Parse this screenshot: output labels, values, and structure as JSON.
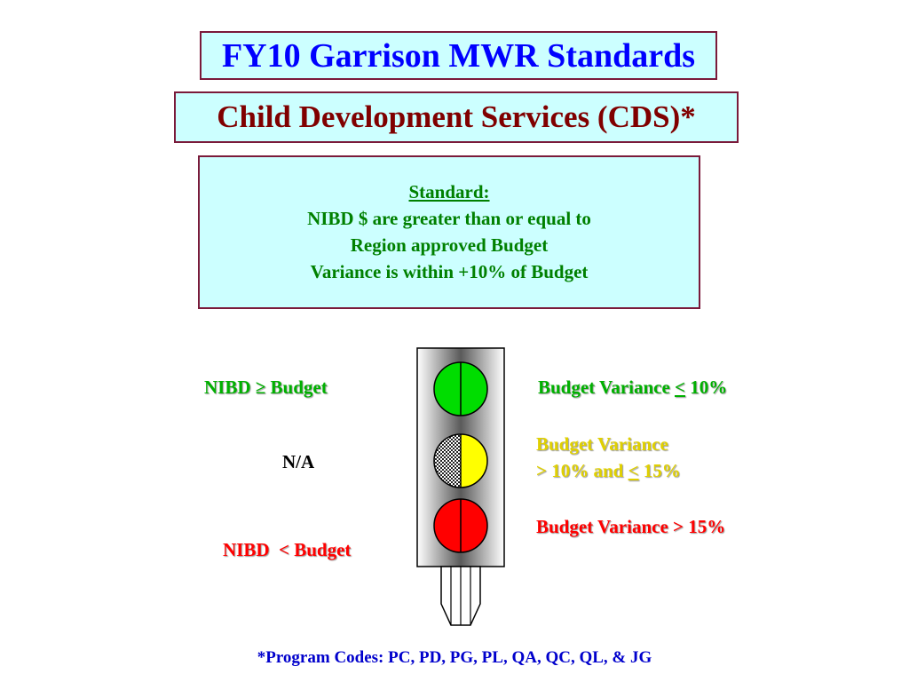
{
  "title": "FY10 Garrison MWR Standards",
  "subtitle": "Child Development Services (CDS)*",
  "standard": {
    "heading": "Standard:",
    "lines": [
      "NIBD $ are greater than or equal to",
      "Region approved Budget",
      "Variance is within +10% of Budget"
    ]
  },
  "left_labels": {
    "green": {
      "prefix": "NIBD ",
      "symbol": "≥",
      "suffix": " Budget"
    },
    "middle": "N/A",
    "red": "NIBD  < Budget"
  },
  "right_labels": {
    "green": {
      "prefix": "Budget Variance ",
      "symbol": "<",
      "suffix": " 10%"
    },
    "yellow": {
      "line1": "Budget Variance",
      "line2_prefix": "> 10% and ",
      "line2_symbol": "<",
      "line2_suffix": " 15%"
    },
    "red": "Budget Variance > 15%"
  },
  "footer": "*Program Codes: PC, PD, PG, PL, QA, QC, QL, & JG",
  "colors": {
    "light_green": "#00dd00",
    "light_yellow": "#ffff00",
    "light_red": "#ff0000",
    "box_fill": "#ccffff",
    "box_border": "#7a1a3a"
  }
}
